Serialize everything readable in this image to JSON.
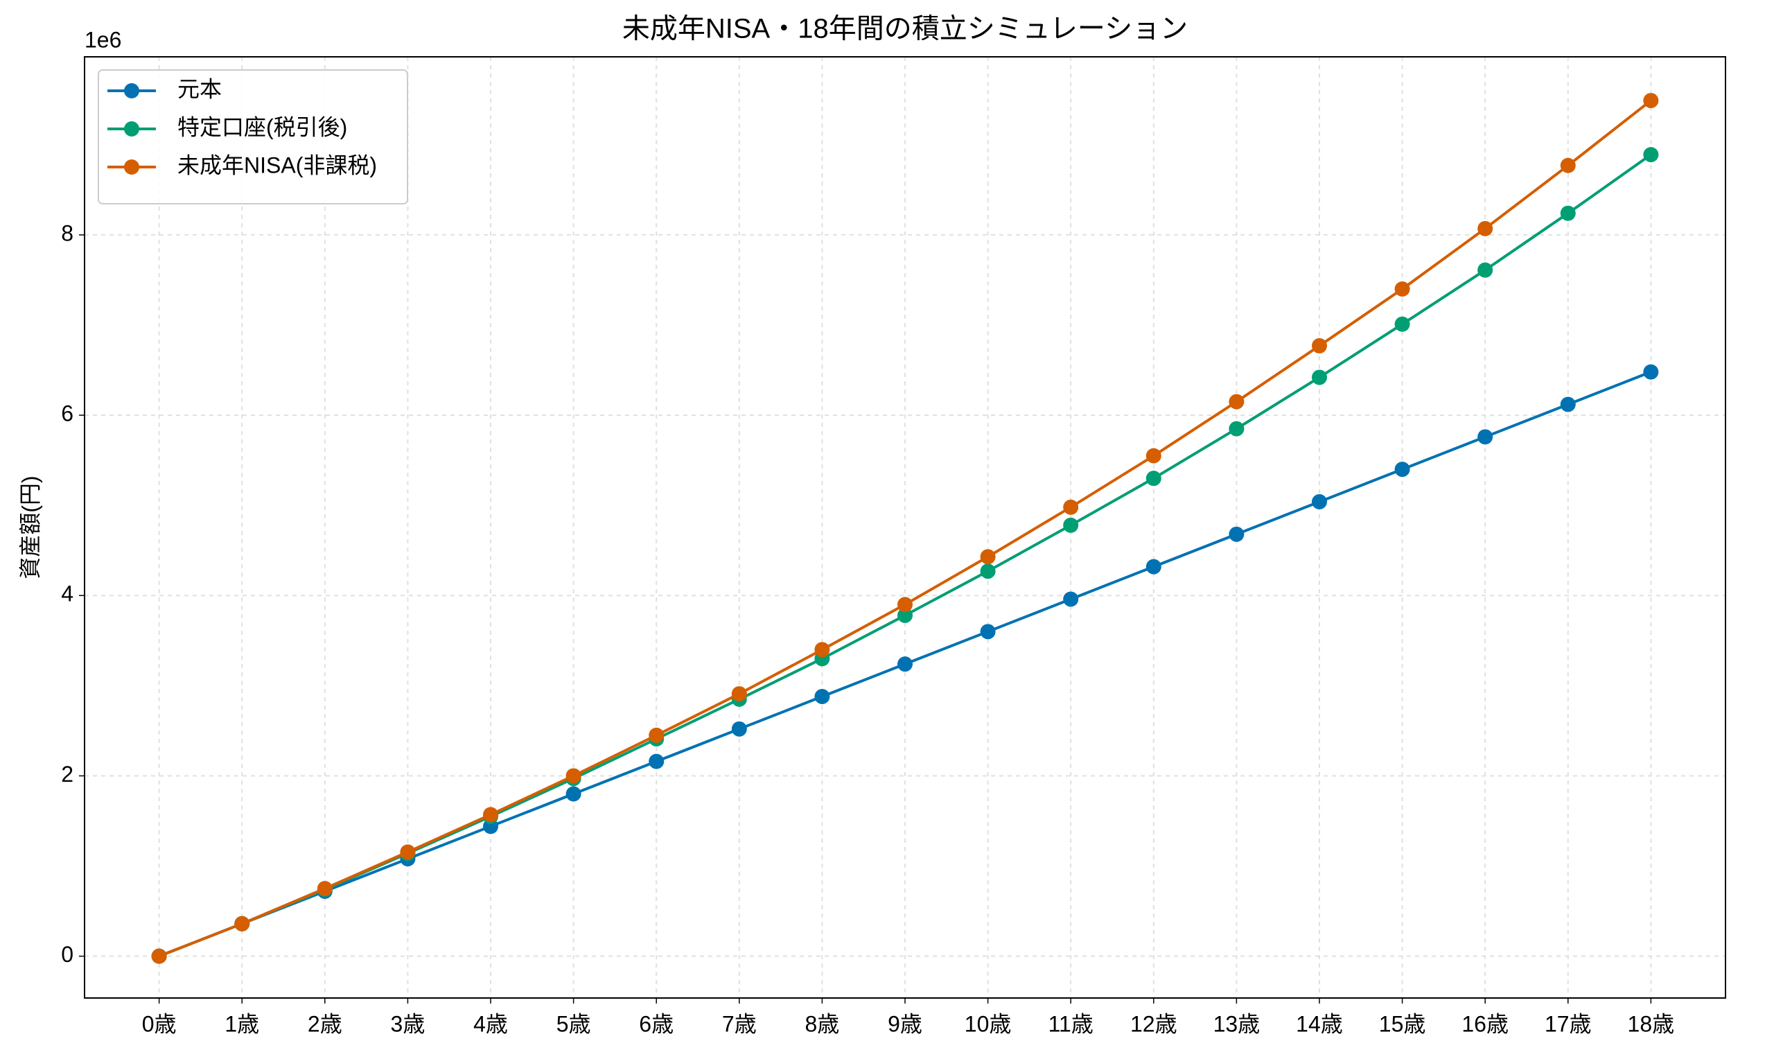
{
  "chart_data": {
    "type": "line",
    "title": "未成年NISA・18年間の積立シミュレーション",
    "y_label": "資産額(円)",
    "y_offset_label": "1e6",
    "categories": [
      "0歳",
      "1歳",
      "2歳",
      "3歳",
      "4歳",
      "5歳",
      "6歳",
      "7歳",
      "8歳",
      "9歳",
      "10歳",
      "11歳",
      "12歳",
      "13歳",
      "14歳",
      "15歳",
      "16歳",
      "17歳",
      "18歳"
    ],
    "series": [
      {
        "name": "元本",
        "color": "#0072B2",
        "values": [
          0,
          0.36,
          0.72,
          1.08,
          1.44,
          1.8,
          2.16,
          2.52,
          2.88,
          3.24,
          3.6,
          3.96,
          4.32,
          4.68,
          5.04,
          5.4,
          5.76,
          6.12,
          6.48
        ]
      },
      {
        "name": "特定口座(税引後)",
        "color": "#009E73",
        "values": [
          0,
          0.36,
          0.74,
          1.14,
          1.55,
          1.97,
          2.41,
          2.85,
          3.3,
          3.78,
          4.27,
          4.78,
          5.3,
          5.85,
          6.42,
          7.01,
          7.61,
          8.24,
          8.89
        ]
      },
      {
        "name": "未成年NISA(非課税)",
        "color": "#D55E00",
        "values": [
          0,
          0.36,
          0.75,
          1.155,
          1.57,
          2.0,
          2.45,
          2.91,
          3.4,
          3.9,
          4.43,
          4.98,
          5.55,
          6.15,
          6.77,
          7.4,
          8.07,
          8.77,
          9.49
        ]
      }
    ],
    "ylim": [
      -0.464,
      9.975
    ],
    "yticks": [
      0,
      2,
      4,
      6,
      8
    ],
    "grid": true,
    "legend": "upper-left"
  }
}
